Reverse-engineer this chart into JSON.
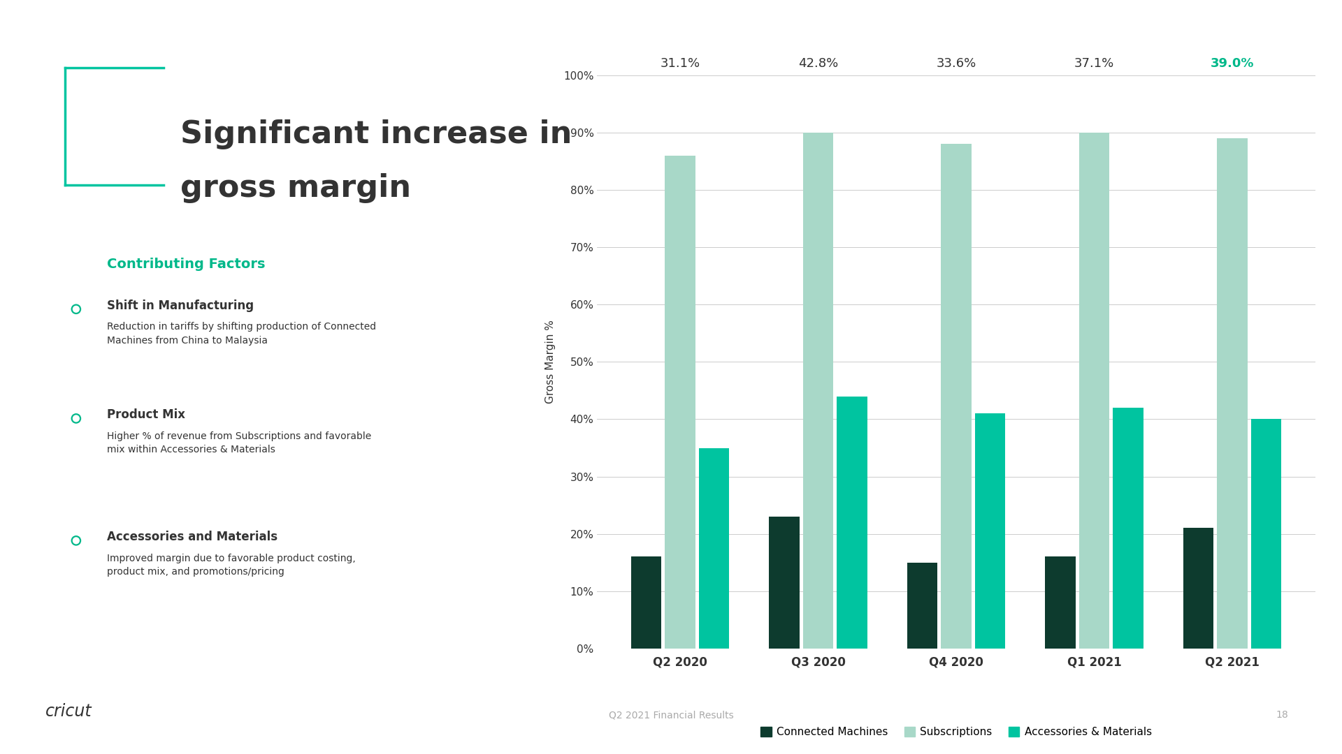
{
  "title_line1": "Significant increase in",
  "title_line2": "gross margin",
  "title_color": "#333333",
  "title_fontsize": 32,
  "bracket_color": "#00C4A0",
  "contributing_factors_label": "Contributing Factors",
  "contributing_factors_color": "#00B88A",
  "bullet_items": [
    {
      "header": "Shift in Manufacturing",
      "body": "Reduction in tariffs by shifting production of Connected\nMachines from China to Malaysia"
    },
    {
      "header": "Product Mix",
      "body": "Higher % of revenue from Subscriptions and favorable\nmix within Accessories & Materials"
    },
    {
      "header": "Accessories and Materials",
      "body": "Improved margin due to favorable product costing,\nproduct mix, and promotions/pricing"
    }
  ],
  "categories": [
    "Q2 2020",
    "Q3 2020",
    "Q4 2020",
    "Q1 2021",
    "Q2 2021"
  ],
  "gross_margin_labels": [
    "31.1%",
    "42.8%",
    "33.6%",
    "37.1%",
    "39.0%"
  ],
  "last_label_color": "#00B88A",
  "other_label_color": "#333333",
  "connected_machines": [
    16,
    23,
    15,
    16,
    21
  ],
  "subscriptions": [
    86,
    90,
    88,
    90,
    89
  ],
  "accessories_materials": [
    35,
    44,
    41,
    42,
    40
  ],
  "color_connected_machines": "#0D3B2E",
  "color_subscriptions": "#A8D8C8",
  "color_accessories": "#00C4A0",
  "ylabel": "Gross Margin %",
  "ylim": [
    0,
    100
  ],
  "yticks": [
    0,
    10,
    20,
    30,
    40,
    50,
    60,
    70,
    80,
    90,
    100
  ],
  "ytick_labels": [
    "0%",
    "10%",
    "20%",
    "30%",
    "40%",
    "50%",
    "60%",
    "70%",
    "80%",
    "90%",
    "100%"
  ],
  "legend_labels": [
    "Connected Machines",
    "Subscriptions",
    "Accessories & Materials"
  ],
  "footer_text": "Q2 2021 Financial Results",
  "footer_color": "#AAAAAA",
  "page_number": "18",
  "background_color": "#FFFFFF",
  "cricut_logo_color": "#333333"
}
